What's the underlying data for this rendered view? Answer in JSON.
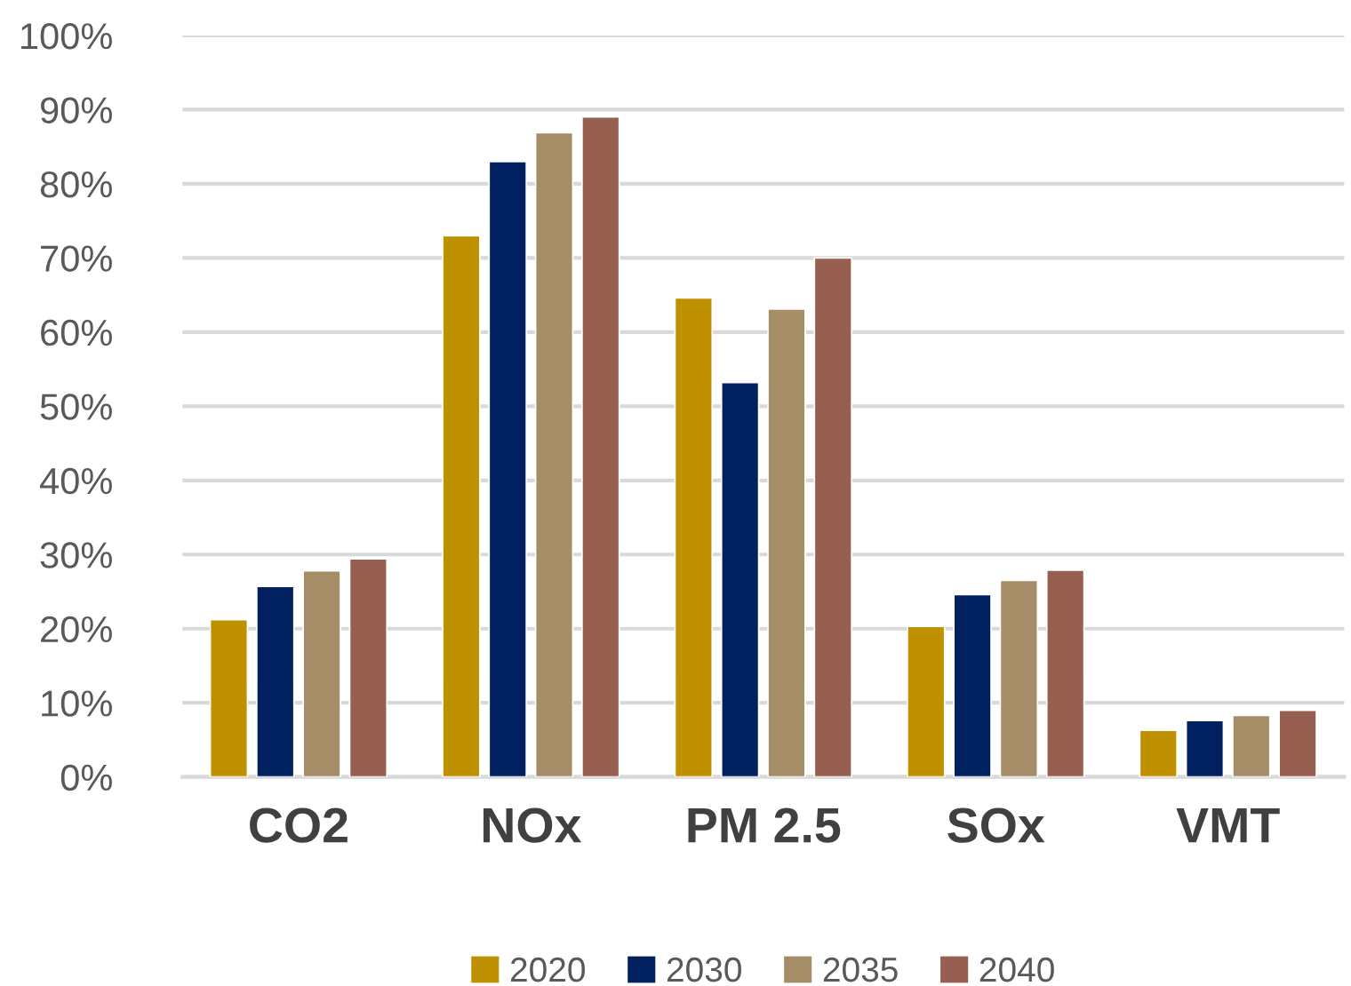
{
  "chart_data": {
    "type": "bar",
    "categories": [
      "CO2",
      "NOx",
      "PM 2.5",
      "SOx",
      "VMT"
    ],
    "series": [
      {
        "name": "2020",
        "color": "#bf9000",
        "values": [
          21.2,
          73.0,
          64.6,
          20.3,
          6.3
        ]
      },
      {
        "name": "2030",
        "color": "#002060",
        "values": [
          25.7,
          83.0,
          53.2,
          24.6,
          7.6
        ]
      },
      {
        "name": "2035",
        "color": "#a58d68",
        "values": [
          27.8,
          86.9,
          63.1,
          26.5,
          8.3
        ]
      },
      {
        "name": "2040",
        "color": "#975f4f",
        "values": [
          29.4,
          89.0,
          70.0,
          27.9,
          9.0
        ]
      }
    ],
    "ylim": [
      0,
      100
    ],
    "yticks": [
      {
        "value": 0,
        "label": "0%"
      },
      {
        "value": 10,
        "label": "10%"
      },
      {
        "value": 20,
        "label": "20%"
      },
      {
        "value": 30,
        "label": "30%"
      },
      {
        "value": 40,
        "label": "40%"
      },
      {
        "value": 50,
        "label": "50%"
      },
      {
        "value": 60,
        "label": "60%"
      },
      {
        "value": 70,
        "label": "70%"
      },
      {
        "value": 80,
        "label": "80%"
      },
      {
        "value": 90,
        "label": "90%"
      },
      {
        "value": 100,
        "label": "100%"
      }
    ],
    "grid": "y",
    "legend": "bottom"
  }
}
